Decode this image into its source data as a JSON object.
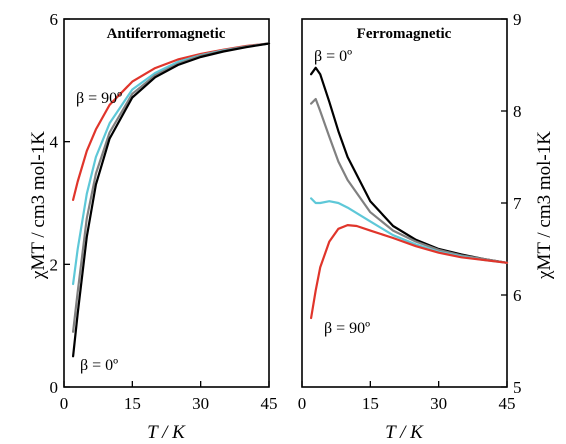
{
  "chart_data": [
    {
      "type": "line",
      "title": "Antiferromagnetic",
      "xlabel": "T / K",
      "ylabel": "χMT / cm3 mol-1K",
      "xlim": [
        0,
        45
      ],
      "ylim": [
        0,
        6
      ],
      "x_ticks": [
        "0",
        "15",
        "30",
        "45"
      ],
      "y_ticks": [
        "0",
        "2",
        "4",
        "6"
      ],
      "annotations": [
        "β = 90º",
        "β = 0º"
      ],
      "series": [
        {
          "color": "#e0352b",
          "x": [
            2,
            3,
            5,
            7,
            10,
            15,
            20,
            25,
            30,
            35,
            40,
            45
          ],
          "y": [
            3.05,
            3.35,
            3.85,
            4.2,
            4.6,
            4.98,
            5.2,
            5.34,
            5.43,
            5.5,
            5.56,
            5.6
          ]
        },
        {
          "color": "#5ec8d8",
          "x": [
            2,
            3,
            5,
            7,
            10,
            15,
            20,
            25,
            30,
            35,
            40,
            45
          ],
          "y": [
            1.68,
            2.25,
            3.15,
            3.75,
            4.3,
            4.85,
            5.12,
            5.3,
            5.41,
            5.49,
            5.55,
            5.6
          ]
        },
        {
          "color": "#808080",
          "x": [
            2,
            3,
            5,
            7,
            10,
            15,
            20,
            25,
            30,
            35,
            40,
            45
          ],
          "y": [
            0.9,
            1.55,
            2.75,
            3.48,
            4.15,
            4.78,
            5.08,
            5.27,
            5.4,
            5.48,
            5.55,
            5.6
          ]
        },
        {
          "color": "#000000",
          "x": [
            2,
            3,
            5,
            7,
            10,
            15,
            20,
            25,
            30,
            35,
            40,
            45
          ],
          "y": [
            0.5,
            1.2,
            2.45,
            3.3,
            4.05,
            4.72,
            5.05,
            5.25,
            5.38,
            5.47,
            5.54,
            5.6
          ]
        }
      ]
    },
    {
      "type": "line",
      "title": "Ferromagnetic",
      "xlabel": "T / K",
      "ylabel": "χMT / cm3 mol-1K",
      "xlim": [
        0,
        45
      ],
      "ylim": [
        5,
        9
      ],
      "x_ticks": [
        "0",
        "15",
        "30",
        "45"
      ],
      "y_ticks": [
        "5",
        "6",
        "7",
        "8",
        "9"
      ],
      "annotations": [
        "β = 0º",
        "β = 90º"
      ],
      "series": [
        {
          "color": "#000000",
          "x": [
            2,
            3,
            4,
            6,
            8,
            10,
            15,
            20,
            25,
            30,
            35,
            40,
            45
          ],
          "y": [
            8.4,
            8.47,
            8.4,
            8.1,
            7.78,
            7.5,
            7.02,
            6.75,
            6.6,
            6.5,
            6.44,
            6.39,
            6.35
          ]
        },
        {
          "color": "#808080",
          "x": [
            2,
            3,
            4,
            6,
            8,
            10,
            15,
            20,
            25,
            30,
            35,
            40,
            45
          ],
          "y": [
            8.08,
            8.13,
            8.0,
            7.72,
            7.45,
            7.25,
            6.9,
            6.7,
            6.58,
            6.49,
            6.43,
            6.39,
            6.35
          ]
        },
        {
          "color": "#5ec8d8",
          "x": [
            2,
            3,
            4,
            6,
            8,
            10,
            15,
            20,
            25,
            30,
            35,
            40,
            45
          ],
          "y": [
            7.05,
            7.0,
            7.0,
            7.02,
            7.0,
            6.95,
            6.8,
            6.65,
            6.55,
            6.47,
            6.42,
            6.38,
            6.35
          ]
        },
        {
          "color": "#e0352b",
          "x": [
            2,
            3,
            4,
            6,
            8,
            10,
            12,
            15,
            20,
            25,
            30,
            35,
            40,
            45
          ],
          "y": [
            5.75,
            6.05,
            6.3,
            6.58,
            6.72,
            6.76,
            6.75,
            6.7,
            6.62,
            6.53,
            6.46,
            6.41,
            6.38,
            6.35
          ]
        }
      ]
    }
  ]
}
